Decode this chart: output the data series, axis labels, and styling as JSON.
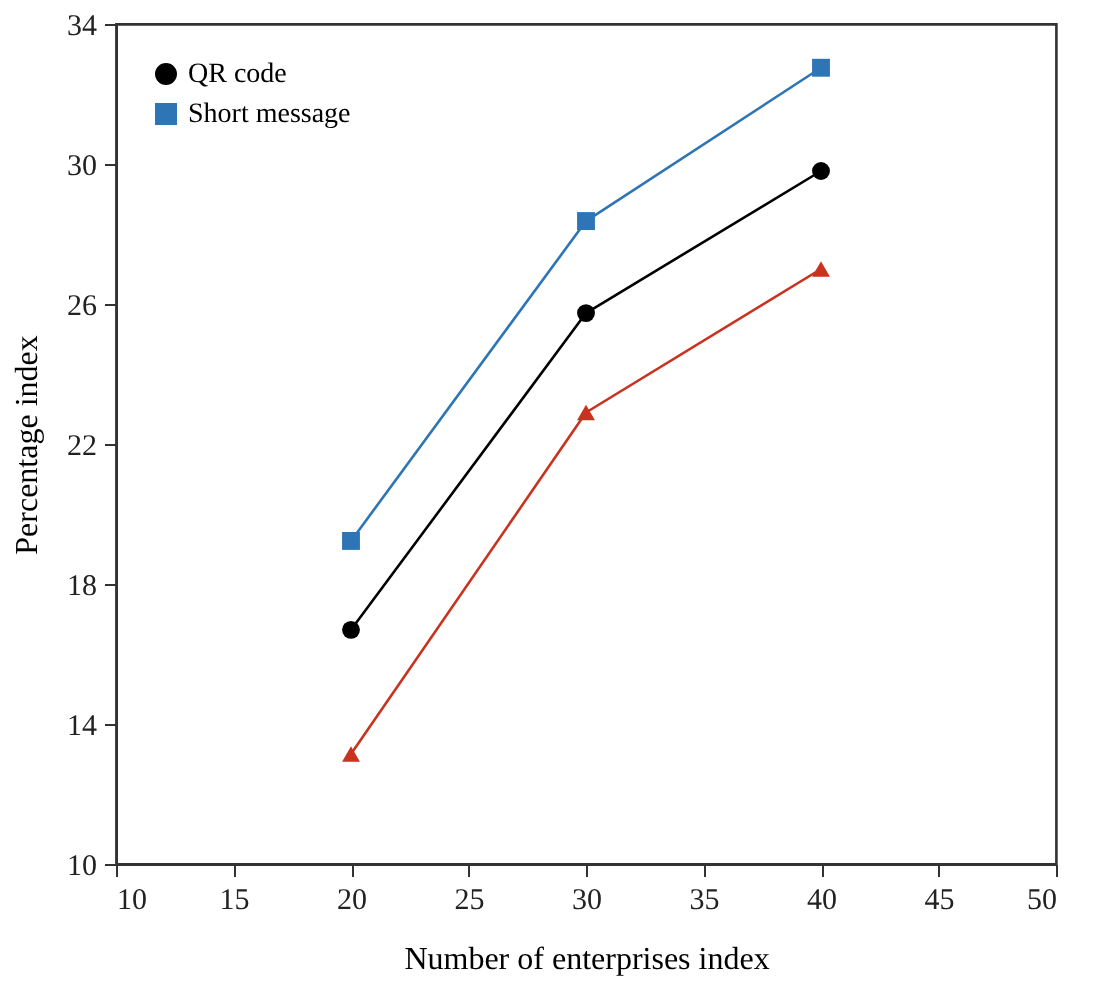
{
  "chart_data": {
    "type": "line",
    "xlabel": "Number of enterprises index",
    "ylabel": "Percentage index",
    "x": [
      20,
      30,
      40
    ],
    "series": [
      {
        "color": "#c9321e",
        "values": [
          13.14,
          22.9,
          27.0
        ],
        "marker": "triangle"
      },
      {
        "name": "QR code",
        "color": "#000000",
        "values": [
          16.69,
          25.74,
          29.8
        ],
        "marker": "circle"
      },
      {
        "name": "Short message",
        "color": "#2e75b6",
        "values": [
          19.23,
          28.37,
          32.75
        ],
        "marker": "square"
      }
    ],
    "xlim": [
      10,
      50
    ],
    "xticks": [
      10,
      15,
      20,
      25,
      30,
      35,
      40,
      45,
      50
    ],
    "ylim": [
      10,
      34
    ],
    "yticks": [
      10,
      14,
      18,
      22,
      26,
      30,
      34
    ],
    "grid": false,
    "legend": "top left",
    "line_style": "solid"
  }
}
